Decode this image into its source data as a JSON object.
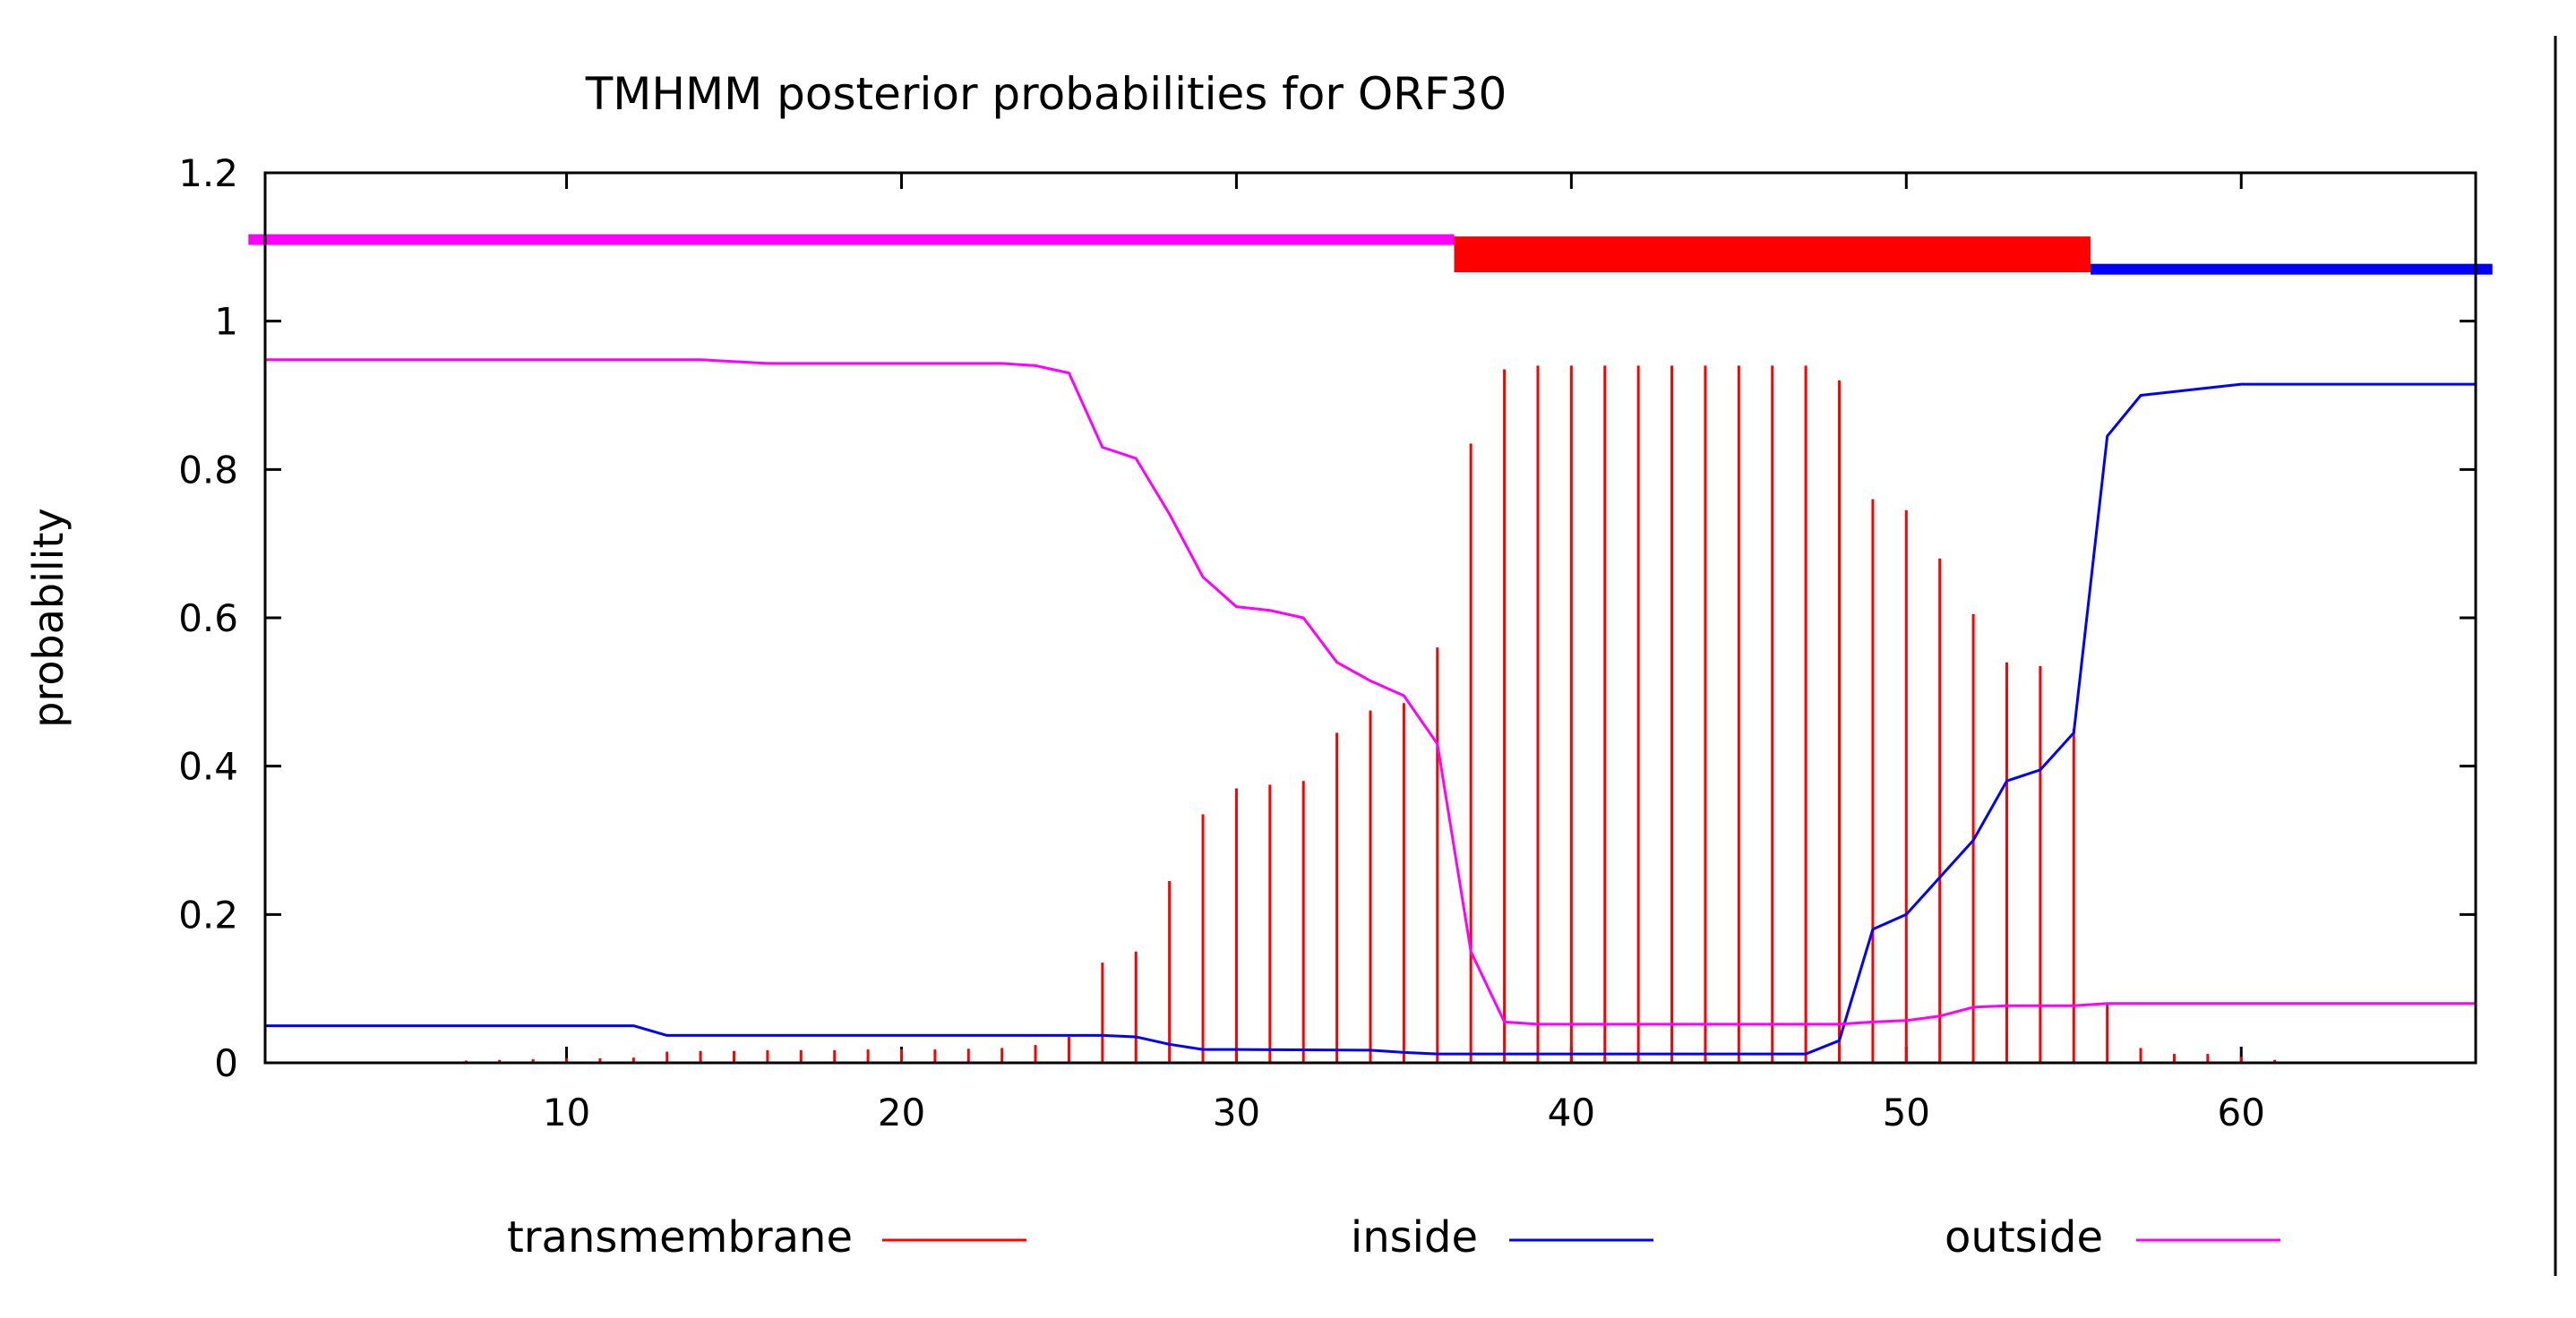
{
  "chart_data": {
    "type": "line",
    "title": "TMHMM posterior probabilities for ORF30",
    "xlabel": "",
    "ylabel": "probability",
    "xlim": [
      1,
      67
    ],
    "ylim": [
      0,
      1.2
    ],
    "x_ticks": [
      10,
      20,
      30,
      40,
      50,
      60
    ],
    "y_ticks": [
      0,
      0.2,
      0.4,
      0.6,
      0.8,
      1,
      1.2
    ],
    "y_tick_labels": [
      "0",
      "0.2",
      "0.4",
      "0.6",
      "0.8",
      "1",
      "1.2"
    ],
    "legend_position": "bottom",
    "colors": {
      "transmembrane": "#ff0000",
      "inside": "#0000ff",
      "outside": "#ff00ff"
    },
    "topology_bars": [
      {
        "region": "outside",
        "start": 1,
        "end": 36,
        "level": 1.11
      },
      {
        "region": "transmembrane",
        "start": 37,
        "end": 55,
        "level": 1.09
      },
      {
        "region": "inside",
        "start": 56,
        "end": 67,
        "level": 1.07
      }
    ],
    "series": [
      {
        "name": "transmembrane",
        "style": "impulses",
        "x": [
          7,
          8,
          9,
          10,
          11,
          12,
          13,
          14,
          15,
          16,
          17,
          18,
          19,
          20,
          21,
          22,
          23,
          24,
          25,
          26,
          27,
          28,
          29,
          30,
          31,
          32,
          33,
          34,
          35,
          36,
          37,
          38,
          39,
          40,
          41,
          42,
          43,
          44,
          45,
          46,
          47,
          48,
          49,
          50,
          51,
          52,
          53,
          54,
          55,
          56,
          57,
          58,
          59,
          60,
          61
        ],
        "y": [
          0.003,
          0.004,
          0.005,
          0.006,
          0.006,
          0.007,
          0.015,
          0.016,
          0.016,
          0.017,
          0.017,
          0.017,
          0.018,
          0.018,
          0.018,
          0.019,
          0.02,
          0.024,
          0.035,
          0.135,
          0.15,
          0.245,
          0.335,
          0.37,
          0.375,
          0.38,
          0.445,
          0.475,
          0.485,
          0.56,
          0.835,
          0.935,
          0.94,
          0.94,
          0.94,
          0.94,
          0.94,
          0.94,
          0.94,
          0.94,
          0.94,
          0.92,
          0.76,
          0.745,
          0.68,
          0.605,
          0.54,
          0.535,
          0.45,
          0.08,
          0.02,
          0.012,
          0.012,
          0.008,
          0.004
        ]
      },
      {
        "name": "inside",
        "style": "line",
        "x": [
          1,
          12,
          13,
          26,
          27,
          28,
          29,
          30,
          34,
          35,
          36,
          37,
          38,
          46,
          47,
          48,
          49,
          50,
          51,
          52,
          53,
          54,
          55,
          56,
          57,
          58,
          59,
          60,
          67
        ],
        "y": [
          0.05,
          0.05,
          0.037,
          0.037,
          0.035,
          0.025,
          0.018,
          0.018,
          0.017,
          0.014,
          0.012,
          0.012,
          0.012,
          0.012,
          0.012,
          0.03,
          0.18,
          0.2,
          0.25,
          0.3,
          0.38,
          0.395,
          0.445,
          0.845,
          0.9,
          0.905,
          0.91,
          0.915,
          0.915
        ]
      },
      {
        "name": "outside",
        "style": "line",
        "x": [
          1,
          14,
          16,
          23,
          24,
          25,
          26,
          27,
          28,
          29,
          30,
          31,
          32,
          33,
          34,
          35,
          36,
          37,
          38,
          39,
          47,
          48,
          49,
          50,
          51,
          52,
          53,
          54,
          55,
          56,
          67
        ],
        "y": [
          0.948,
          0.948,
          0.943,
          0.943,
          0.94,
          0.93,
          0.83,
          0.815,
          0.74,
          0.655,
          0.615,
          0.61,
          0.6,
          0.54,
          0.515,
          0.495,
          0.43,
          0.15,
          0.055,
          0.052,
          0.052,
          0.052,
          0.055,
          0.057,
          0.063,
          0.075,
          0.077,
          0.077,
          0.077,
          0.08,
          0.08
        ]
      }
    ]
  }
}
